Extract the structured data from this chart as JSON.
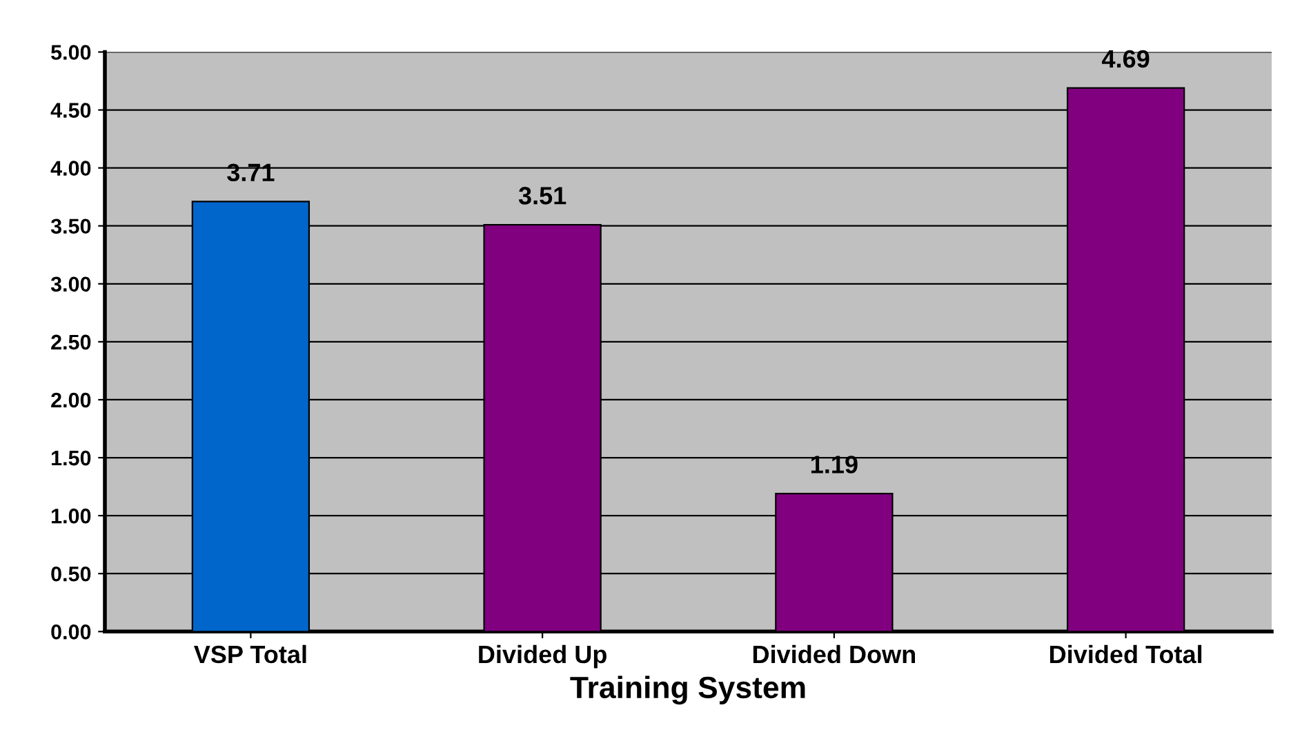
{
  "chart_data": {
    "type": "bar",
    "xlabel": "Training System",
    "categories": [
      "VSP Total",
      "Divided Up",
      "Divided Down",
      "Divided Total"
    ],
    "values": [
      3.71,
      3.51,
      1.19,
      4.69
    ],
    "colors": [
      "#0066cc",
      "#800080",
      "#800080",
      "#800080"
    ],
    "value_labels": [
      "3.71",
      "3.51",
      "1.19",
      "4.69"
    ],
    "ylim": [
      0,
      5
    ],
    "yticks": [
      {
        "value": 0,
        "label": "0.00"
      },
      {
        "value": 0.5,
        "label": "0.50"
      },
      {
        "value": 1,
        "label": "1.00"
      },
      {
        "value": 1.5,
        "label": "1.50"
      },
      {
        "value": 2,
        "label": "2.00"
      },
      {
        "value": 2.5,
        "label": "2.50"
      },
      {
        "value": 3,
        "label": "3.00"
      },
      {
        "value": 3.5,
        "label": "3.50"
      },
      {
        "value": 4,
        "label": "4.00"
      },
      {
        "value": 4.5,
        "label": "4.50"
      },
      {
        "value": 5,
        "label": "5.00"
      }
    ],
    "grid": "y",
    "legend": false
  }
}
